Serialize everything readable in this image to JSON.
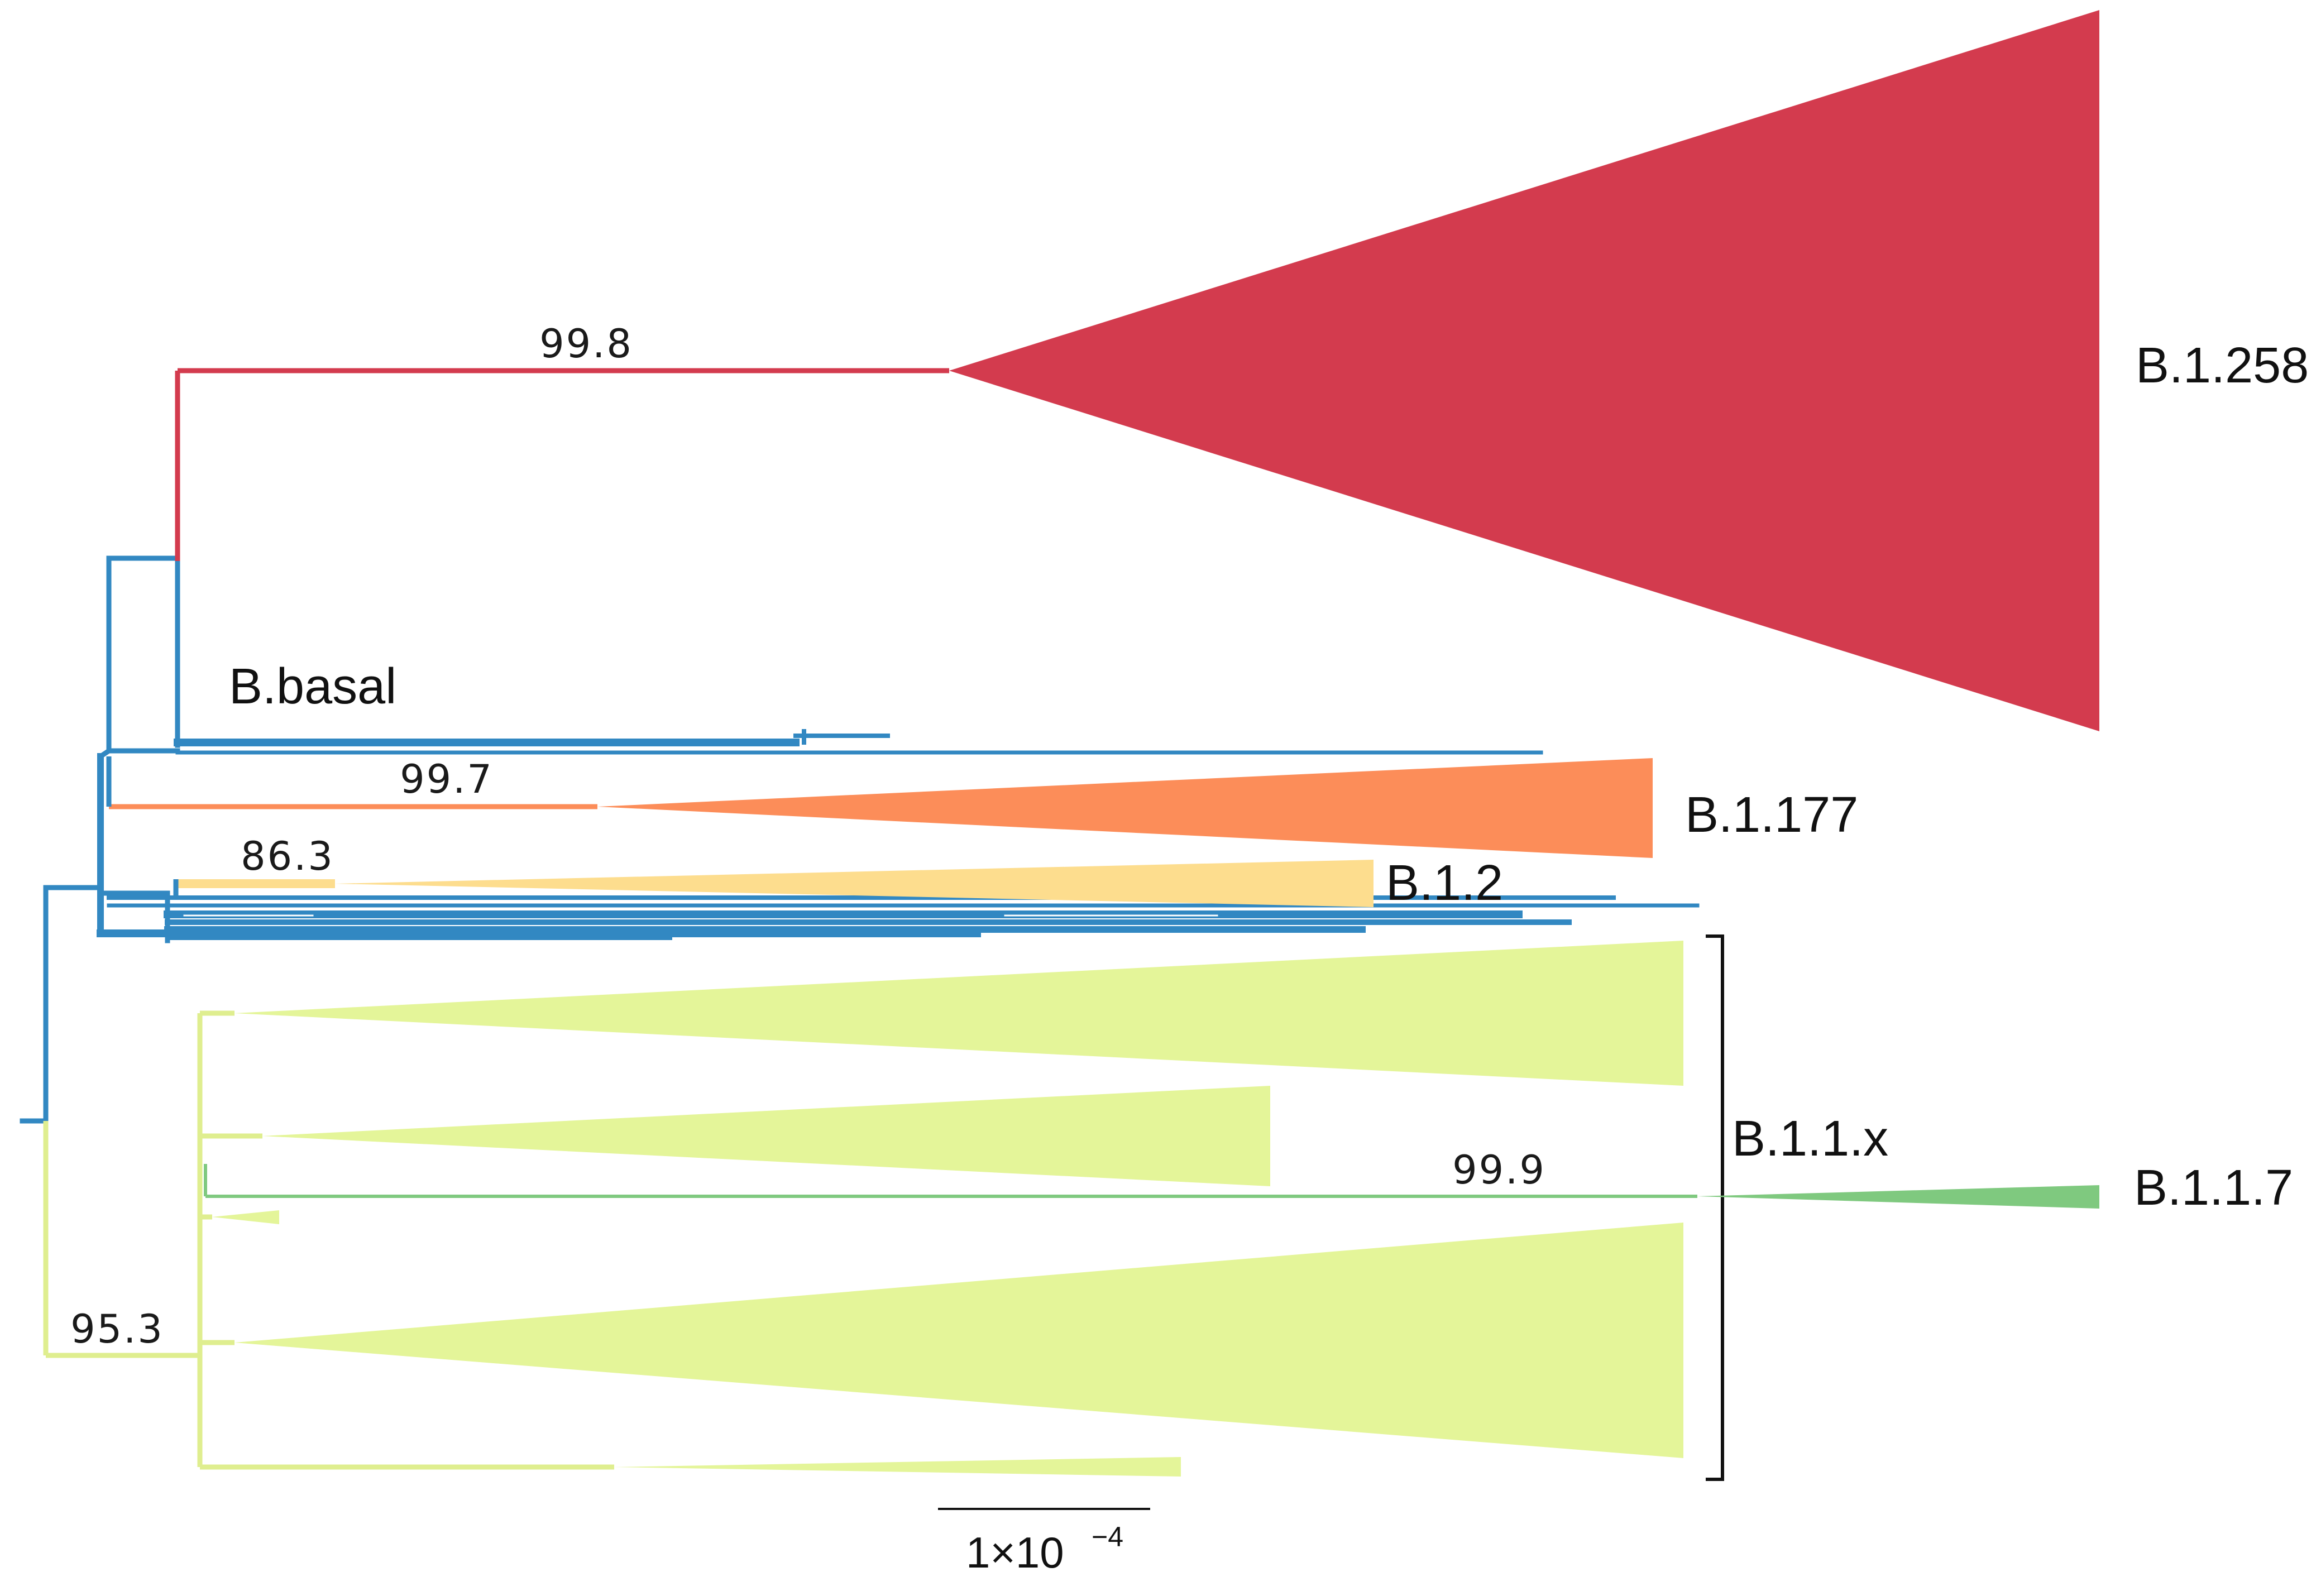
{
  "colors": {
    "b1258": "#d33b4e",
    "b1177": "#fc8d59",
    "b12": "#fddd8e",
    "b11x": "#e4f599",
    "b117": "#7fc97f",
    "basal": "#3288c2",
    "b11x_line": "#dfee8f",
    "bracket": "#111111",
    "text": "#111111"
  },
  "clades": {
    "b1258": {
      "label": "B.1.258",
      "support": "99.8"
    },
    "b1177": {
      "label": "B.1.177",
      "support": "99.7"
    },
    "b12": {
      "label": "B.1.2",
      "support": "86.3"
    },
    "basal": {
      "label": "B.basal"
    },
    "b11x": {
      "label": "B.1.1.x",
      "support": "95.3"
    },
    "b117": {
      "label": "B.1.1.7",
      "support": "99.9"
    }
  },
  "scale_bar": {
    "value": "1×10",
    "exponent": "−4"
  }
}
